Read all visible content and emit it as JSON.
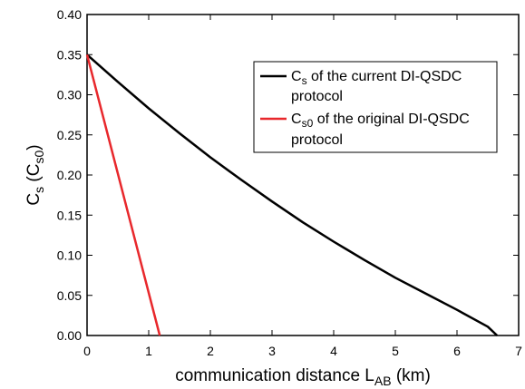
{
  "chart_data": {
    "type": "line",
    "xlabel": {
      "main": "communication distance L",
      "sub": "AB",
      "unit": " (km)"
    },
    "ylabel": {
      "main": "C",
      "sub1": "s",
      "mid": " (C",
      "sub2": "s0",
      "end": ")"
    },
    "xlim": [
      0,
      7
    ],
    "ylim": [
      0,
      0.4
    ],
    "x_ticks": [
      0,
      1,
      2,
      3,
      4,
      5,
      6,
      7
    ],
    "y_ticks": [
      "0.00",
      "0.05",
      "0.10",
      "0.15",
      "0.20",
      "0.25",
      "0.30",
      "0.35",
      "0.40"
    ],
    "grid": false,
    "legend_position": "upper-right",
    "series": [
      {
        "legend_main": "C",
        "legend_sub": "s",
        "legend_rest": " of the current DI-QSDC",
        "legend_line2": "protocol",
        "color": "#000000",
        "x": [
          0,
          0.5,
          1,
          1.5,
          2,
          2.5,
          3,
          3.5,
          4,
          4.5,
          5,
          5.5,
          6,
          6.5,
          6.65
        ],
        "y": [
          0.35,
          0.316,
          0.283,
          0.252,
          0.222,
          0.194,
          0.167,
          0.141,
          0.117,
          0.094,
          0.072,
          0.052,
          0.032,
          0.011,
          0.0
        ]
      },
      {
        "legend_main": "C",
        "legend_sub": "s0",
        "legend_rest": " of the original DI-QSDC",
        "legend_line2": "protocol",
        "color": "#e8282c",
        "x": [
          0,
          1.18
        ],
        "y": [
          0.35,
          0.0
        ]
      }
    ]
  }
}
